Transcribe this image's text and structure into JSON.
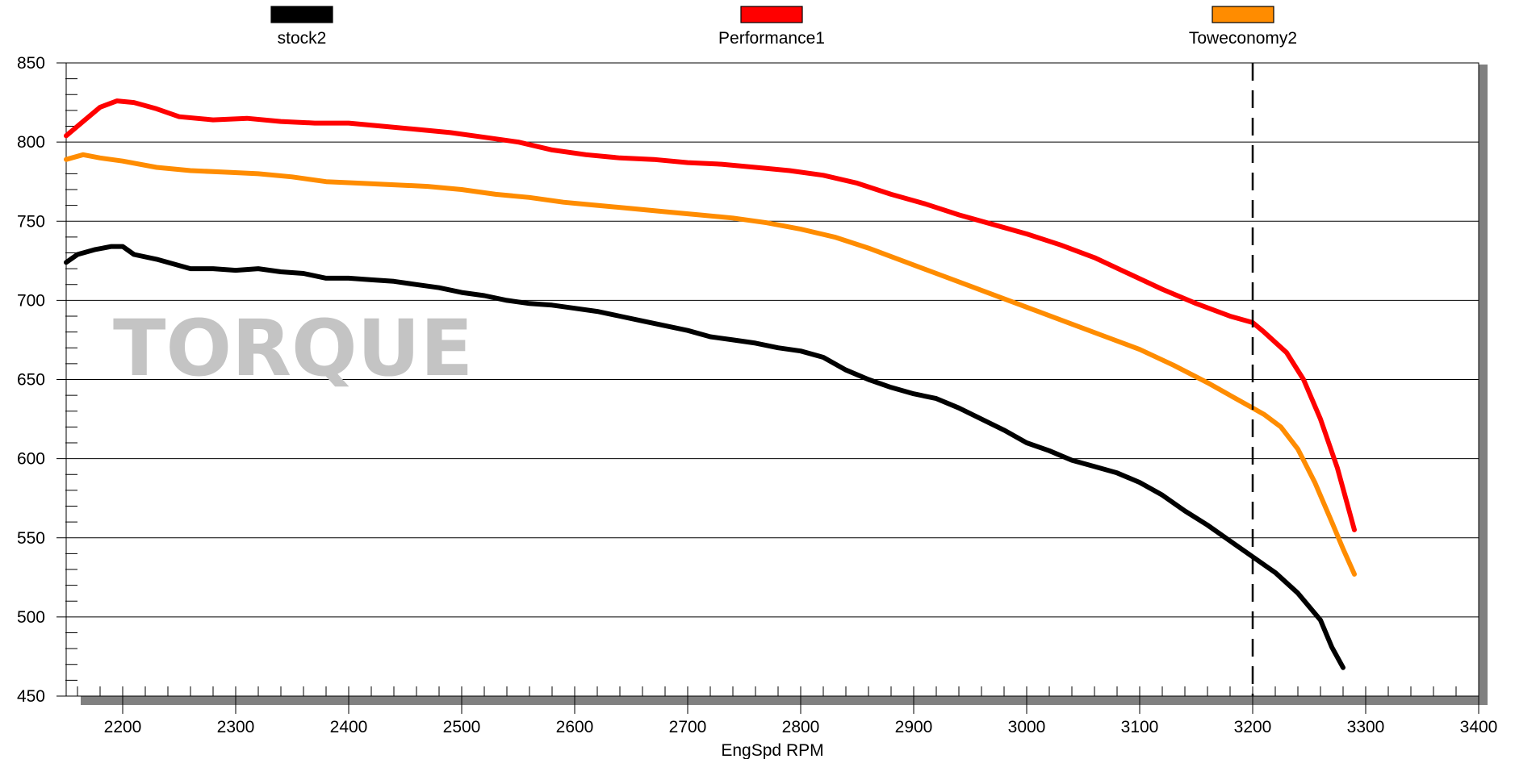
{
  "chart_data": {
    "type": "line",
    "watermark": "TORQUE",
    "xlabel": "EngSpd  RPM",
    "ylabel": "",
    "xlim": [
      2150,
      3400
    ],
    "ylim": [
      450,
      850
    ],
    "x_ticks": [
      2200,
      2300,
      2400,
      2500,
      2600,
      2700,
      2800,
      2900,
      3000,
      3100,
      3200,
      3300,
      3400
    ],
    "y_ticks": [
      450,
      500,
      550,
      600,
      650,
      700,
      750,
      800,
      850
    ],
    "grid": true,
    "legend_position": "top",
    "cursor_x": 3200,
    "series": [
      {
        "name": "stock2",
        "color": "#000000",
        "x": [
          2150,
          2160,
          2175,
          2190,
          2200,
          2210,
          2230,
          2260,
          2280,
          2300,
          2320,
          2340,
          2360,
          2380,
          2400,
          2420,
          2440,
          2460,
          2480,
          2500,
          2520,
          2540,
          2560,
          2580,
          2600,
          2620,
          2640,
          2660,
          2680,
          2700,
          2720,
          2740,
          2760,
          2780,
          2800,
          2820,
          2840,
          2860,
          2880,
          2900,
          2920,
          2940,
          2960,
          2980,
          3000,
          3020,
          3040,
          3060,
          3080,
          3100,
          3120,
          3140,
          3160,
          3180,
          3200,
          3220,
          3240,
          3260,
          3270,
          3280
        ],
        "values": [
          724,
          729,
          732,
          734,
          734,
          729,
          726,
          720,
          720,
          719,
          720,
          718,
          717,
          714,
          714,
          713,
          712,
          710,
          708,
          705,
          703,
          700,
          698,
          697,
          695,
          693,
          690,
          687,
          684,
          681,
          677,
          675,
          673,
          670,
          668,
          664,
          656,
          650,
          645,
          641,
          638,
          632,
          625,
          618,
          610,
          605,
          599,
          595,
          591,
          585,
          577,
          567,
          558,
          548,
          538,
          528,
          515,
          498,
          481,
          468
        ]
      },
      {
        "name": "Performance1",
        "color": "#ff0000",
        "x": [
          2150,
          2165,
          2180,
          2195,
          2210,
          2230,
          2250,
          2280,
          2310,
          2340,
          2370,
          2400,
          2430,
          2460,
          2490,
          2520,
          2550,
          2580,
          2610,
          2640,
          2670,
          2700,
          2730,
          2760,
          2790,
          2820,
          2850,
          2880,
          2910,
          2940,
          2970,
          3000,
          3030,
          3060,
          3090,
          3120,
          3150,
          3180,
          3200,
          3210,
          3230,
          3245,
          3260,
          3275,
          3290
        ],
        "values": [
          804,
          813,
          822,
          826,
          825,
          821,
          816,
          814,
          815,
          813,
          812,
          812,
          810,
          808,
          806,
          803,
          800,
          795,
          792,
          790,
          789,
          787,
          786,
          784,
          782,
          779,
          774,
          767,
          761,
          754,
          748,
          742,
          735,
          727,
          717,
          707,
          698,
          690,
          686,
          680,
          667,
          650,
          625,
          594,
          555
        ]
      },
      {
        "name": "Toweconomy2",
        "color": "#ff8c00",
        "x": [
          2150,
          2165,
          2180,
          2200,
          2230,
          2260,
          2290,
          2320,
          2350,
          2380,
          2410,
          2440,
          2470,
          2500,
          2530,
          2560,
          2590,
          2620,
          2650,
          2680,
          2710,
          2740,
          2770,
          2800,
          2830,
          2860,
          2890,
          2920,
          2950,
          2980,
          3010,
          3040,
          3070,
          3100,
          3130,
          3160,
          3190,
          3210,
          3225,
          3240,
          3255,
          3270,
          3280,
          3290
        ],
        "values": [
          789,
          792,
          790,
          788,
          784,
          782,
          781,
          780,
          778,
          775,
          774,
          773,
          772,
          770,
          767,
          765,
          762,
          760,
          758,
          756,
          754,
          752,
          749,
          745,
          740,
          733,
          725,
          717,
          709,
          701,
          693,
          685,
          677,
          669,
          659,
          648,
          636,
          628,
          620,
          606,
          585,
          560,
          543,
          527
        ]
      }
    ]
  }
}
